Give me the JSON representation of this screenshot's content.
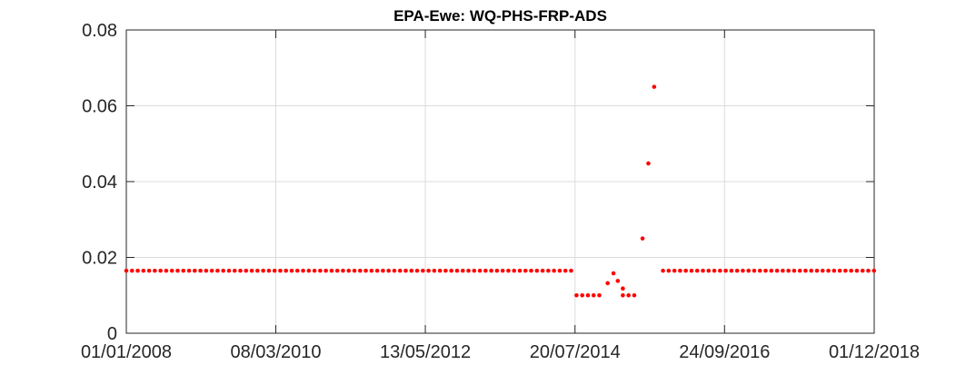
{
  "chart_data": {
    "type": "scatter",
    "title": "EPA-Ewe: WQ-PHS-FRP-ADS",
    "xlabel": "",
    "ylabel": "",
    "x_type": "date",
    "xlim": [
      "01/01/2008",
      "01/12/2018"
    ],
    "ylim": [
      0,
      0.08
    ],
    "x_ticks": [
      "01/01/2008",
      "08/03/2010",
      "13/05/2012",
      "20/07/2014",
      "24/09/2016",
      "01/12/2018"
    ],
    "y_ticks": [
      "0",
      "0.02",
      "0.04",
      "0.06",
      "0.08"
    ],
    "grid": true,
    "marker_color": "#ff0000",
    "series": [
      {
        "color": "#ff0000",
        "segments": [
          {
            "start": "01/01/2008",
            "end": "14/07/2014",
            "step_days": 30.4,
            "y": 0.0165
          },
          {
            "start": "28/07/2014",
            "end": "10/12/2014",
            "step_days": 30.4,
            "y": 0.01
          },
          {
            "start": "01/04/2015",
            "end": "15/06/2015",
            "step_days": 30.4,
            "y": 0.01
          },
          {
            "start": "01/11/2015",
            "end": "01/12/2018",
            "step_days": 30.4,
            "y": 0.0165
          }
        ],
        "points": [
          {
            "x": "10/01/2015",
            "y": 0.0132
          },
          {
            "x": "10/02/2015",
            "y": 0.0158
          },
          {
            "x": "05/03/2015",
            "y": 0.0138
          },
          {
            "x": "01/04/2015",
            "y": 0.0118
          },
          {
            "x": "15/07/2015",
            "y": 0.025
          },
          {
            "x": "15/08/2015",
            "y": 0.0448
          },
          {
            "x": "15/09/2015",
            "y": 0.065
          }
        ]
      }
    ]
  }
}
